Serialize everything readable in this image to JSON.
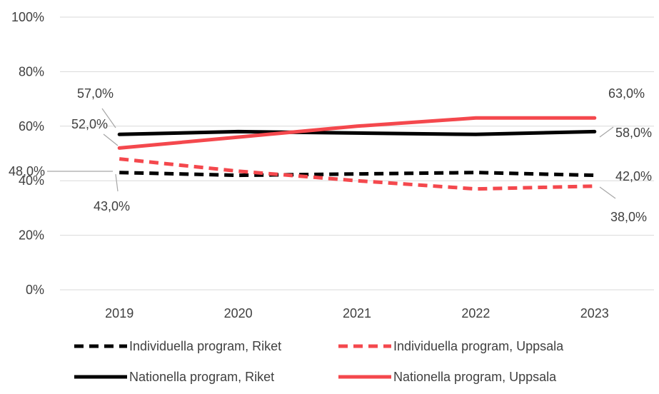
{
  "chart_data": {
    "type": "line",
    "categories": [
      "2019",
      "2020",
      "2021",
      "2022",
      "2023"
    ],
    "ylim": [
      0,
      100
    ],
    "yticks": [
      0,
      20,
      40,
      60,
      80,
      100
    ],
    "ytick_labels": [
      "0%",
      "20%",
      "40%",
      "60%",
      "80%",
      "100%"
    ],
    "grid": true,
    "legend_position": "bottom",
    "series": [
      {
        "name": "Individuella program, Riket",
        "color": "#000000",
        "dash": "dashed",
        "values": [
          43,
          42,
          42.5,
          43,
          42
        ],
        "labels": [
          {
            "index": 0,
            "text": "43,0%"
          },
          {
            "index": 4,
            "text": "42,0%"
          }
        ]
      },
      {
        "name": "Individuella program, Uppsala",
        "color": "#f4484d",
        "dash": "dashed",
        "values": [
          48,
          43.5,
          40,
          37,
          38
        ],
        "labels": [
          {
            "index": 0,
            "text": "48,0%"
          },
          {
            "index": 4,
            "text": "38,0%"
          }
        ]
      },
      {
        "name": "Nationella program, Riket",
        "color": "#000000",
        "dash": "solid",
        "values": [
          57,
          58,
          57.5,
          57,
          58
        ],
        "labels": [
          {
            "index": 0,
            "text": "57,0%"
          },
          {
            "index": 4,
            "text": "58,0%"
          }
        ]
      },
      {
        "name": "Nationella program, Uppsala",
        "color": "#f4484d",
        "dash": "solid",
        "values": [
          52,
          56,
          60,
          63,
          63
        ],
        "labels": [
          {
            "index": 0,
            "text": "52,0%"
          },
          {
            "index": 4,
            "text": "63,0%"
          }
        ]
      }
    ]
  }
}
